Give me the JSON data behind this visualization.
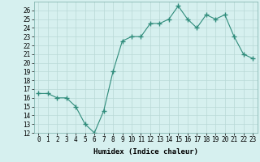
{
  "x": [
    0,
    1,
    2,
    3,
    4,
    5,
    6,
    7,
    8,
    9,
    10,
    11,
    12,
    13,
    14,
    15,
    16,
    17,
    18,
    19,
    20,
    21,
    22,
    23
  ],
  "y": [
    16.5,
    16.5,
    16.0,
    16.0,
    15.0,
    13.0,
    12.0,
    14.5,
    19.0,
    22.5,
    23.0,
    23.0,
    24.5,
    24.5,
    25.0,
    26.5,
    25.0,
    24.0,
    25.5,
    25.0,
    25.5,
    23.0,
    21.0,
    20.5
  ],
  "line_color": "#2e8b7a",
  "marker": "+",
  "marker_size": 4,
  "bg_color": "#d6f0ef",
  "grid_color": "#b8d8d6",
  "xlabel": "Humidex (Indice chaleur)",
  "ylim": [
    12,
    27
  ],
  "xlim": [
    -0.5,
    23.5
  ],
  "yticks": [
    12,
    13,
    14,
    15,
    16,
    17,
    18,
    19,
    20,
    21,
    22,
    23,
    24,
    25,
    26
  ],
  "xticks": [
    0,
    1,
    2,
    3,
    4,
    5,
    6,
    7,
    8,
    9,
    10,
    11,
    12,
    13,
    14,
    15,
    16,
    17,
    18,
    19,
    20,
    21,
    22,
    23
  ],
  "tick_fontsize": 5.5,
  "xlabel_fontsize": 6.5
}
